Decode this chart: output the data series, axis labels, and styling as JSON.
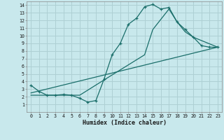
{
  "xlabel": "Humidex (Indice chaleur)",
  "bg_color": "#c8e8ec",
  "line_color": "#1a6e6a",
  "grid_color": "#aed0d4",
  "xlim": [
    -0.5,
    23.5
  ],
  "ylim": [
    0,
    14.5
  ],
  "xticks": [
    0,
    1,
    2,
    3,
    4,
    5,
    6,
    7,
    8,
    9,
    10,
    11,
    12,
    13,
    14,
    15,
    16,
    17,
    18,
    19,
    20,
    21,
    22,
    23
  ],
  "yticks": [
    1,
    2,
    3,
    4,
    5,
    6,
    7,
    8,
    9,
    10,
    11,
    12,
    13,
    14
  ],
  "line1_x": [
    0,
    1,
    2,
    3,
    4,
    5,
    6,
    7,
    8,
    9,
    10,
    11,
    12,
    13,
    14,
    15,
    16,
    17,
    18,
    19,
    20,
    21,
    22,
    23
  ],
  "line1_y": [
    3.5,
    2.7,
    2.2,
    2.2,
    2.3,
    2.2,
    1.8,
    1.3,
    1.5,
    4.3,
    7.5,
    9.0,
    11.5,
    12.3,
    13.8,
    14.1,
    13.5,
    13.7,
    11.8,
    10.8,
    9.8,
    8.7,
    8.5,
    8.5
  ],
  "line2_x": [
    0,
    23
  ],
  "line2_y": [
    2.5,
    8.5
  ],
  "line3_x": [
    0,
    6,
    9,
    14,
    15,
    17,
    18,
    19,
    20,
    23
  ],
  "line3_y": [
    2.2,
    2.2,
    4.2,
    7.5,
    10.8,
    13.5,
    11.8,
    10.5,
    9.8,
    8.5
  ]
}
